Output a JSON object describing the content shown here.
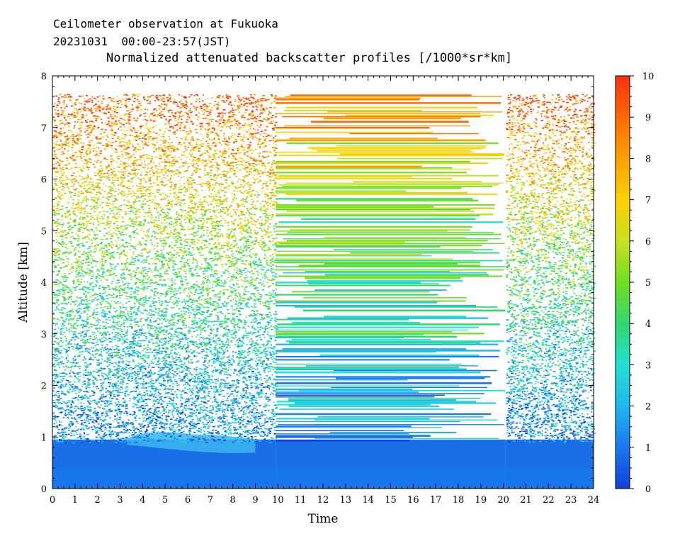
{
  "header": {
    "line1": "Ceilometer observation at Fukuoka",
    "line2": "20231031  00:00-23:57(JST)",
    "line3": "Normalized attenuated backscatter profiles [/1000*sr*km]"
  },
  "chart_data": {
    "type": "heatmap",
    "title": "Normalized attenuated backscatter profiles [/1000*sr*km]",
    "xlabel": "Time",
    "ylabel": "Altitude [km]",
    "xlim": [
      0,
      24
    ],
    "ylim": [
      0,
      8
    ],
    "x_ticks": [
      "0",
      "1",
      "2",
      "3",
      "4",
      "5",
      "6",
      "7",
      "8",
      "9",
      "10",
      "11",
      "12",
      "13",
      "14",
      "15",
      "16",
      "17",
      "18",
      "19",
      "20",
      "21",
      "22",
      "23",
      "24"
    ],
    "y_ticks": [
      "0",
      "1",
      "2",
      "3",
      "4",
      "5",
      "6",
      "7",
      "8"
    ],
    "colorbar": {
      "min": 0,
      "max": 10,
      "ticks": [
        "0",
        "1",
        "2",
        "3",
        "4",
        "5",
        "6",
        "7",
        "8",
        "9",
        "10"
      ],
      "colors": [
        "#1040e0",
        "#1a78f0",
        "#1eb8f0",
        "#20e0d0",
        "#30d870",
        "#70e020",
        "#c8e020",
        "#ffd000",
        "#ffa000",
        "#ff6a00",
        "#ff3010"
      ]
    },
    "data_top_altitude_km": 7.65,
    "segments": [
      {
        "name": "night-1",
        "start": 0,
        "end": 9.9,
        "pattern": "speckle"
      },
      {
        "name": "day",
        "start": 9.9,
        "end": 20.1,
        "pattern": "streaks"
      },
      {
        "name": "night-2",
        "start": 20.1,
        "end": 24,
        "pattern": "speckle"
      }
    ],
    "boundary_layer_top_km": 1.0,
    "aerosol_layer": {
      "start": 3.3,
      "end": 9.0,
      "bottom_km": 0.75,
      "top_km": 1.1
    }
  }
}
